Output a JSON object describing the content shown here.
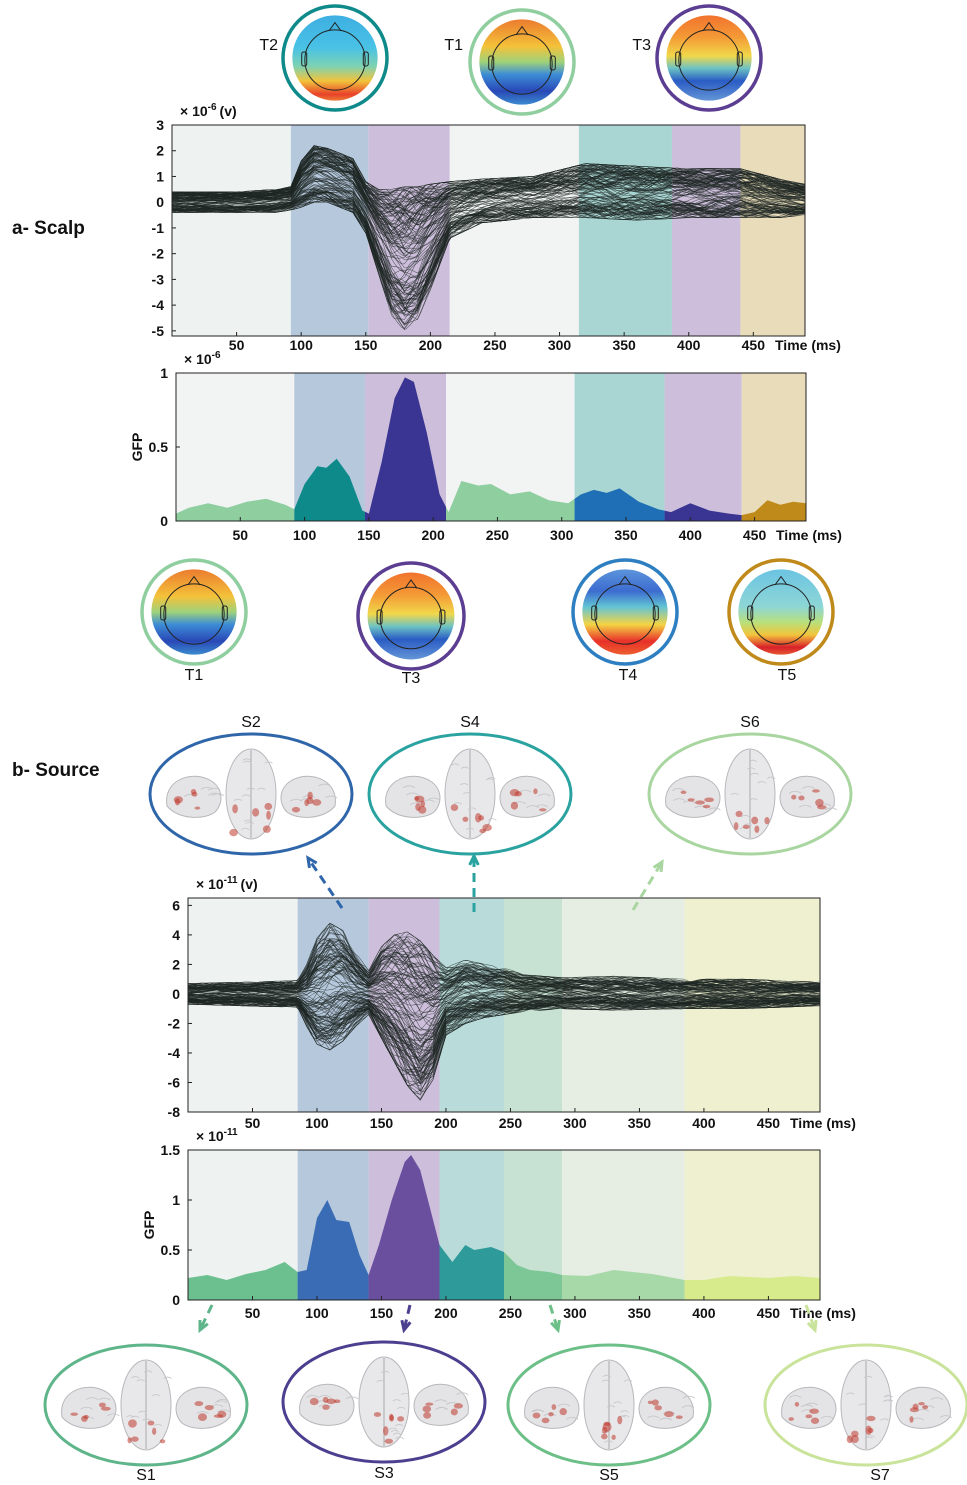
{
  "sections": {
    "a_label": "a- Scalp",
    "b_label": "b- Source"
  },
  "colors": {
    "T1": "#8fce9f",
    "T2": "#0f8a8a",
    "T3": "#5b3d92",
    "T4": "#2d7fc1",
    "T5": "#c08a1a",
    "S1": "#5fb58a",
    "S2": "#2f66aa",
    "S3": "#4b3f8f",
    "S4": "#2aa3a0",
    "S5": "#6cbf86",
    "S6": "#a9d6a0",
    "S7": "#c9e49a"
  },
  "chart_data": [
    {
      "id": "scalp-erp",
      "type": "line",
      "multiplier_label": "× 10",
      "multiplier_exp": "-6",
      "unit": "(v)",
      "xlabel": "Time (ms)",
      "x_ticks": [
        "50",
        "100",
        "150",
        "200",
        "250",
        "300",
        "350",
        "400",
        "450"
      ],
      "y_ticks": [
        "3",
        "2",
        "1",
        "0",
        "-1",
        "-2",
        "-3",
        "-4",
        "-5"
      ],
      "xlim": [
        0,
        490
      ],
      "ylim": [
        -5.2,
        3
      ],
      "segments": [
        {
          "from": 0,
          "to": 92,
          "color": "#eef3f2"
        },
        {
          "from": 92,
          "to": 152,
          "color": "#b6c8dc"
        },
        {
          "from": 152,
          "to": 215,
          "color": "#cdbfdb"
        },
        {
          "from": 215,
          "to": 315,
          "color": "#f1f4f3"
        },
        {
          "from": 315,
          "to": 387,
          "color": "#a9d6d3"
        },
        {
          "from": 387,
          "to": 440,
          "color": "#cdbfdb"
        },
        {
          "from": 440,
          "to": 490,
          "color": "#e8dcba"
        }
      ],
      "envelope": {
        "x": [
          0,
          50,
          80,
          92,
          100,
          110,
          120,
          140,
          150,
          160,
          170,
          180,
          190,
          200,
          215,
          240,
          280,
          320,
          360,
          400,
          440,
          470,
          490
        ],
        "max": [
          0.4,
          0.4,
          0.5,
          0.6,
          1.6,
          2.2,
          2.1,
          1.7,
          0.8,
          0.5,
          0.5,
          0.6,
          0.6,
          0.7,
          0.8,
          0.9,
          1.0,
          1.5,
          1.4,
          1.3,
          1.3,
          0.9,
          0.7
        ],
        "min": [
          -0.4,
          -0.4,
          -0.4,
          -0.3,
          -0.2,
          0.0,
          0.0,
          -0.4,
          -1.2,
          -2.8,
          -4.4,
          -5.0,
          -4.6,
          -3.4,
          -1.4,
          -0.8,
          -0.6,
          -0.6,
          -0.7,
          -0.6,
          -0.6,
          -0.6,
          -0.5
        ]
      },
      "trace_count": 140
    },
    {
      "id": "scalp-gfp",
      "type": "area",
      "multiplier_label": "× 10",
      "multiplier_exp": "-6",
      "ylabel": "GFP",
      "xlabel": "Time (ms)",
      "x_ticks": [
        "50",
        "100",
        "150",
        "200",
        "250",
        "300",
        "350",
        "400",
        "450"
      ],
      "y_ticks": [
        "1",
        "0.5",
        "0"
      ],
      "xlim": [
        0,
        490
      ],
      "ylim": [
        0,
        1
      ],
      "segments": [
        {
          "from": 0,
          "to": 92,
          "color": "#f1f4f3",
          "fill": "#8fce9f"
        },
        {
          "from": 92,
          "to": 147,
          "color": "#b6c8dc",
          "fill": "#0f8a8a"
        },
        {
          "from": 147,
          "to": 210,
          "color": "#cdbfdb",
          "fill": "#3a3592"
        },
        {
          "from": 210,
          "to": 310,
          "color": "#f1f4f3",
          "fill": "#8fce9f"
        },
        {
          "from": 310,
          "to": 380,
          "color": "#a9d6d3",
          "fill": "#1e6fb6"
        },
        {
          "from": 380,
          "to": 440,
          "color": "#cdbfdb",
          "fill": "#3a3592"
        },
        {
          "from": 440,
          "to": 490,
          "color": "#e8dcba",
          "fill": "#c08a1a"
        }
      ],
      "x": [
        0,
        10,
        25,
        40,
        55,
        70,
        85,
        92,
        100,
        110,
        117,
        125,
        135,
        145,
        150,
        160,
        170,
        178,
        185,
        195,
        205,
        212,
        222,
        235,
        245,
        260,
        275,
        290,
        305,
        315,
        325,
        335,
        345,
        360,
        375,
        385,
        400,
        415,
        430,
        440,
        450,
        460,
        470,
        480,
        490
      ],
      "gfp": [
        0.05,
        0.09,
        0.12,
        0.09,
        0.13,
        0.15,
        0.11,
        0.08,
        0.25,
        0.37,
        0.36,
        0.42,
        0.3,
        0.07,
        0.05,
        0.4,
        0.83,
        0.97,
        0.94,
        0.6,
        0.18,
        0.06,
        0.27,
        0.24,
        0.25,
        0.18,
        0.2,
        0.14,
        0.12,
        0.18,
        0.21,
        0.19,
        0.22,
        0.13,
        0.08,
        0.06,
        0.12,
        0.07,
        0.05,
        0.04,
        0.06,
        0.14,
        0.11,
        0.13,
        0.12
      ]
    },
    {
      "id": "source-erp",
      "type": "line",
      "multiplier_label": "× 10",
      "multiplier_exp": "-11",
      "unit": "(v)",
      "xlabel": "Time (ms)",
      "x_ticks": [
        "50",
        "100",
        "150",
        "200",
        "250",
        "300",
        "350",
        "400",
        "450"
      ],
      "y_ticks": [
        "6",
        "4",
        "2",
        "0",
        "-2",
        "-4",
        "-6",
        "-8"
      ],
      "xlim": [
        0,
        490
      ],
      "ylim": [
        -8,
        6.5
      ],
      "segments": [
        {
          "from": 0,
          "to": 85,
          "color": "#eef3f2"
        },
        {
          "from": 85,
          "to": 140,
          "color": "#b6c8dc"
        },
        {
          "from": 140,
          "to": 195,
          "color": "#cdbfdb"
        },
        {
          "from": 195,
          "to": 245,
          "color": "#b9dcdb"
        },
        {
          "from": 245,
          "to": 290,
          "color": "#c7e2d2"
        },
        {
          "from": 290,
          "to": 385,
          "color": "#e6ede2"
        },
        {
          "from": 385,
          "to": 490,
          "color": "#eef0d0"
        }
      ],
      "envelope": {
        "x": [
          0,
          40,
          85,
          92,
          100,
          110,
          120,
          130,
          140,
          150,
          160,
          170,
          180,
          190,
          200,
          215,
          230,
          245,
          260,
          290,
          330,
          385,
          430,
          490
        ],
        "max": [
          0.7,
          0.8,
          0.9,
          2.0,
          3.8,
          4.8,
          4.3,
          2.8,
          1.6,
          3.2,
          4.0,
          4.2,
          3.6,
          2.6,
          1.8,
          2.3,
          2.0,
          1.8,
          1.3,
          1.1,
          1.2,
          1.0,
          1.0,
          0.8
        ],
        "min": [
          -0.7,
          -0.8,
          -0.9,
          -2.2,
          -3.4,
          -3.8,
          -3.2,
          -2.2,
          -1.4,
          -3.0,
          -4.6,
          -6.2,
          -7.2,
          -5.8,
          -2.8,
          -2.0,
          -1.6,
          -1.4,
          -1.2,
          -1.0,
          -1.1,
          -1.0,
          -1.0,
          -0.8
        ]
      },
      "trace_count": 140
    },
    {
      "id": "source-gfp",
      "type": "area",
      "multiplier_label": "× 10",
      "multiplier_exp": "-11",
      "ylabel": "GFP",
      "xlabel": "Time (ms)",
      "x_ticks": [
        "50",
        "100",
        "150",
        "200",
        "250",
        "300",
        "350",
        "400",
        "450"
      ],
      "y_ticks": [
        "1.5",
        "1",
        "0.5",
        "0"
      ],
      "xlim": [
        0,
        490
      ],
      "ylim": [
        0,
        1.5
      ],
      "segments": [
        {
          "from": 0,
          "to": 85,
          "color": "#eef3f2",
          "fill": "#6cc08f"
        },
        {
          "from": 85,
          "to": 140,
          "color": "#b6c8dc",
          "fill": "#3a6bb5"
        },
        {
          "from": 140,
          "to": 195,
          "color": "#cdbfdb",
          "fill": "#6a4f9f"
        },
        {
          "from": 195,
          "to": 245,
          "color": "#b9dcdb",
          "fill": "#2f9a9a"
        },
        {
          "from": 245,
          "to": 290,
          "color": "#c7e2d2",
          "fill": "#7cc795"
        },
        {
          "from": 290,
          "to": 385,
          "color": "#e6ede2",
          "fill": "#a7d8a7"
        },
        {
          "from": 385,
          "to": 490,
          "color": "#eef0d0",
          "fill": "#d7eb8c"
        }
      ],
      "x": [
        0,
        15,
        30,
        45,
        60,
        75,
        85,
        92,
        100,
        108,
        115,
        125,
        133,
        140,
        148,
        158,
        168,
        173,
        180,
        190,
        195,
        205,
        215,
        222,
        235,
        245,
        255,
        265,
        280,
        290,
        310,
        330,
        360,
        385,
        400,
        420,
        450,
        470,
        490
      ],
      "gfp": [
        0.22,
        0.25,
        0.2,
        0.26,
        0.3,
        0.38,
        0.28,
        0.3,
        0.82,
        1.0,
        0.8,
        0.78,
        0.45,
        0.25,
        0.55,
        1.0,
        1.38,
        1.45,
        1.3,
        0.8,
        0.55,
        0.38,
        0.55,
        0.5,
        0.53,
        0.48,
        0.35,
        0.3,
        0.28,
        0.25,
        0.24,
        0.3,
        0.26,
        0.2,
        0.2,
        0.24,
        0.22,
        0.24,
        0.22
      ]
    }
  ],
  "topomaps": {
    "top": [
      {
        "label": "T2",
        "color_key": "T2",
        "pattern": "t2"
      },
      {
        "label": "T1",
        "color_key": "T1",
        "pattern": "t1"
      },
      {
        "label": "T3",
        "color_key": "T3",
        "pattern": "t3"
      }
    ],
    "bottom": [
      {
        "label": "T1",
        "color_key": "T1",
        "pattern": "t1"
      },
      {
        "label": "T3",
        "color_key": "T3",
        "pattern": "t3"
      },
      {
        "label": "T4",
        "color_key": "T4",
        "pattern": "t4"
      },
      {
        "label": "T5",
        "color_key": "T5",
        "pattern": "t5"
      }
    ]
  },
  "sources": {
    "top": [
      {
        "label": "S2",
        "color_key": "S2"
      },
      {
        "label": "S4",
        "color_key": "S4"
      },
      {
        "label": "S6",
        "color_key": "S6"
      }
    ],
    "bottom": [
      {
        "label": "S1",
        "color_key": "S1"
      },
      {
        "label": "S3",
        "color_key": "S3"
      },
      {
        "label": "S5",
        "color_key": "S5"
      },
      {
        "label": "S7",
        "color_key": "S7"
      }
    ]
  }
}
